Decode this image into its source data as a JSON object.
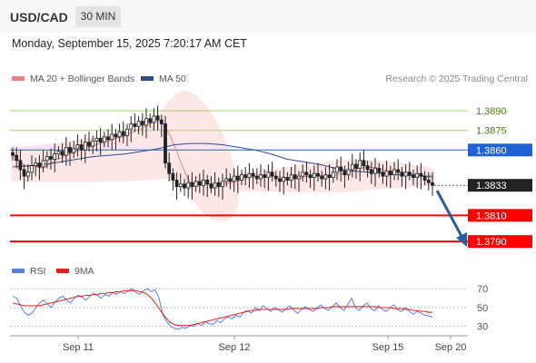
{
  "header": {
    "pair": "USD/CAD",
    "timeframe": "30 MIN",
    "datetime": "Monday, September 15, 2025 7:20:17 AM CET"
  },
  "legend": {
    "ma20": "MA 20 + Bollinger Bands",
    "ma50": "MA 50",
    "copyright": "Research © 2025 Trading Central"
  },
  "colors": {
    "ma20": "#f08080",
    "ma50": "#2b4d8c",
    "bollinger_fill": "#fde3e3",
    "resistance_green": "#a6d36a",
    "pivot_blue": "#1f62d8",
    "support_red": "#ff0000",
    "rsi": "#5b7fd6",
    "rsi_ma": "#e02020",
    "arrow": "#2a5aa0"
  },
  "chart_data": [
    {
      "type": "candlestick",
      "title": "USD/CAD 30 MIN",
      "levels": [
        {
          "value": 1.389,
          "label": "1.3890",
          "role": "resistance",
          "color": "#a6d36a"
        },
        {
          "value": 1.3875,
          "label": "1.3875",
          "role": "resistance",
          "color": "#a6d36a"
        },
        {
          "value": 1.386,
          "label": "1.3860",
          "role": "pivot",
          "color": "#1f62d8"
        },
        {
          "value": 1.381,
          "label": "1.3810",
          "role": "support",
          "color": "#ff0000"
        },
        {
          "value": 1.379,
          "label": "1.3790",
          "role": "support",
          "color": "#ff0000"
        }
      ],
      "current_price": {
        "value": 1.3833,
        "label": "1.3833"
      },
      "x_ticks": [
        "Sep 11",
        "Sep 12",
        "Sep 15",
        "Sep 20"
      ],
      "ylim": [
        1.3779,
        1.3897
      ],
      "series_close": [
        1.3856,
        1.3852,
        1.3845,
        1.384,
        1.3843,
        1.3848,
        1.385,
        1.3847,
        1.3852,
        1.3855,
        1.3853,
        1.3857,
        1.3859,
        1.3856,
        1.3862,
        1.3858,
        1.3861,
        1.3864,
        1.386,
        1.3866,
        1.3863,
        1.3867,
        1.3869,
        1.3866,
        1.387,
        1.3868,
        1.3872,
        1.387,
        1.3874,
        1.3871,
        1.3876,
        1.388,
        1.3878,
        1.3882,
        1.3879,
        1.3884,
        1.3881,
        1.3886,
        1.3883,
        1.388,
        1.385,
        1.3842,
        1.3837,
        1.3832,
        1.3834,
        1.3831,
        1.3835,
        1.3832,
        1.3836,
        1.3833,
        1.3837,
        1.3834,
        1.3831,
        1.3835,
        1.3832,
        1.3836,
        1.3838,
        1.3836,
        1.384,
        1.3837,
        1.3841,
        1.3839,
        1.3842,
        1.384,
        1.3838,
        1.3841,
        1.3839,
        1.3843,
        1.384,
        1.3838,
        1.3836,
        1.3839,
        1.3837,
        1.3841,
        1.3838,
        1.384,
        1.3843,
        1.3841,
        1.3839,
        1.3842,
        1.384,
        1.3838,
        1.3841,
        1.3839,
        1.3843,
        1.3847,
        1.3844,
        1.3841,
        1.3845,
        1.3849,
        1.3846,
        1.3852,
        1.3848,
        1.3845,
        1.3842,
        1.3846,
        1.3843,
        1.384,
        1.3844,
        1.3841,
        1.3845,
        1.3843,
        1.384,
        1.3843,
        1.3841,
        1.3839,
        1.3842,
        1.384,
        1.3837,
        1.3835,
        1.3833
      ],
      "ma50": [
        1.3847,
        1.3848,
        1.3849,
        1.3851,
        1.3853,
        1.3855,
        1.3856,
        1.3857,
        1.3859,
        1.3861,
        1.3864,
        1.3865,
        1.3865,
        1.3864,
        1.3862,
        1.386,
        1.3857,
        1.3853,
        1.3851,
        1.3849,
        1.3846,
        1.3844,
        1.3843,
        1.3842,
        1.3841,
        1.384,
        1.384
      ],
      "projection": {
        "from": 1.3833,
        "to": 1.379
      },
      "rsi": {
        "name": "RSI",
        "ma_name": "9MA",
        "levels": [
          70,
          50,
          30
        ],
        "ylim": [
          22,
          76
        ],
        "values": [
          62,
          60,
          52,
          45,
          42,
          44,
          50,
          55,
          58,
          54,
          50,
          56,
          60,
          62,
          58,
          55,
          60,
          63,
          61,
          58,
          62,
          65,
          63,
          60,
          64,
          62,
          66,
          64,
          67,
          65,
          68,
          70,
          66,
          64,
          68,
          70,
          67,
          69,
          60,
          42,
          35,
          30,
          28,
          27,
          29,
          28,
          31,
          30,
          33,
          31,
          35,
          33,
          32,
          36,
          34,
          38,
          40,
          38,
          42,
          40,
          45,
          47,
          44,
          50,
          47,
          52,
          49,
          46,
          50,
          48,
          45,
          49,
          52,
          47,
          44,
          48,
          51,
          48,
          46,
          50,
          53,
          49,
          47,
          51,
          55,
          50,
          47,
          53,
          60,
          50,
          47,
          52,
          55,
          49,
          47,
          52,
          48,
          46,
          50,
          53,
          48,
          46,
          50,
          46,
          43,
          46,
          44,
          42,
          41,
          40
        ],
        "ma_values": [
          55,
          54,
          53,
          52,
          52,
          52,
          52,
          52,
          53,
          54,
          55,
          56,
          57,
          58,
          59,
          60,
          61,
          62,
          62,
          63,
          63,
          64,
          64,
          65,
          65,
          66,
          66,
          67,
          67,
          68,
          68,
          68,
          68,
          67,
          66,
          64,
          60,
          55,
          49,
          43,
          38,
          34,
          32,
          31,
          31,
          31,
          31,
          32,
          33,
          34,
          35,
          36,
          37,
          38,
          39,
          40,
          41,
          42,
          43,
          44,
          45,
          46,
          47,
          47,
          48,
          48,
          48,
          48,
          48,
          48,
          48,
          48,
          49,
          49,
          49,
          49,
          49,
          49,
          49,
          49,
          50,
          50,
          50,
          51,
          51,
          51,
          51,
          51,
          51,
          51,
          51,
          51,
          51,
          51,
          51,
          50,
          50,
          50,
          50,
          49,
          49,
          49,
          48,
          48,
          47,
          47,
          46,
          46,
          45,
          45
        ]
      }
    }
  ]
}
